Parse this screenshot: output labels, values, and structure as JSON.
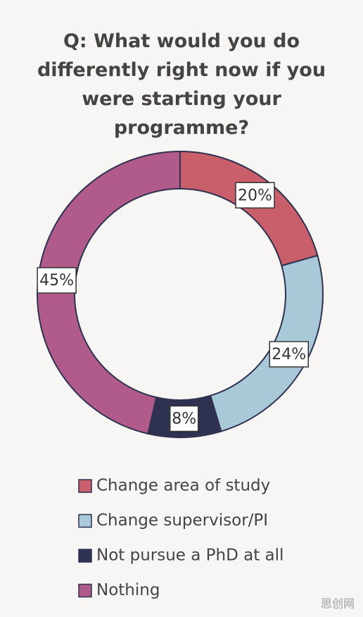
{
  "chart_data": {
    "type": "donut",
    "title": "Q: What would you do differently right now if you were starting your programme?",
    "categories": [
      "Change area of study",
      "Change supervisor/PI",
      "Not pursue a PhD at all",
      "Nothing"
    ],
    "values": [
      20,
      24,
      8,
      45
    ],
    "value_labels": [
      "20%",
      "24%",
      "8%",
      "45%"
    ],
    "colors": [
      "#c95f6a",
      "#a9c8d8",
      "#2e3250",
      "#b05b8a"
    ],
    "legend": "bottom"
  },
  "watermark": "思创网"
}
